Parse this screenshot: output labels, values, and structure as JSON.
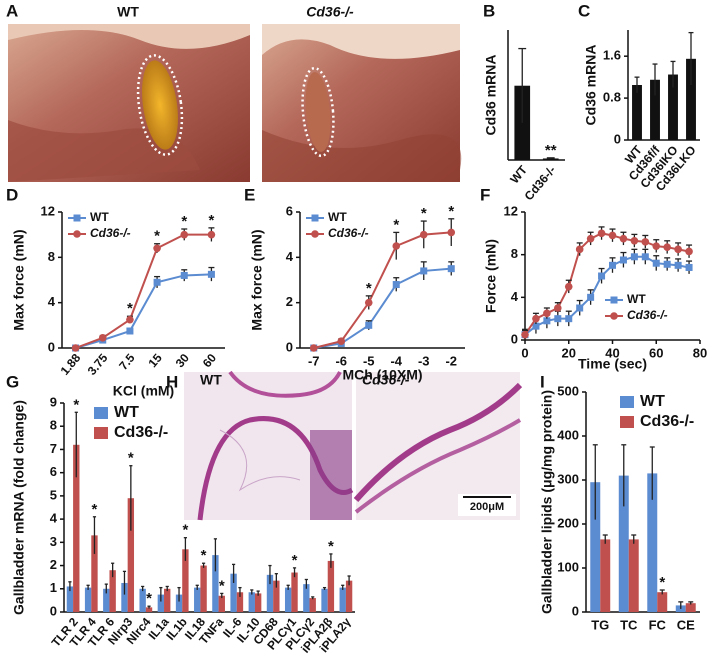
{
  "chart_data": [
    {
      "type": "image",
      "panel": "A",
      "labels": [
        "WT",
        "Cd36-/-"
      ]
    },
    {
      "type": "bar",
      "panel": "B",
      "y_label": "Cd36 mRNA",
      "categories": [
        "WT",
        "Cd36-/-"
      ],
      "ylim": [
        0,
        4.2
      ],
      "series": [
        {
          "color": "#111111",
          "values": [
            2.4,
            0.05
          ],
          "errors": [
            1.2,
            0.02
          ],
          "significance": [
            null,
            "**"
          ]
        }
      ]
    },
    {
      "type": "bar",
      "panel": "C",
      "y_label": "Cd36 mRNA",
      "categories": [
        "WT",
        "Cd36f/f",
        "Cd36IKO",
        "Cd36LKO"
      ],
      "ylim": [
        0,
        2.1
      ],
      "yticks": [
        0,
        0.8,
        1.6
      ],
      "series": [
        {
          "color": "#111111",
          "values": [
            1.05,
            1.15,
            1.25,
            1.55
          ],
          "errors": [
            0.15,
            0.3,
            0.25,
            0.5
          ]
        }
      ]
    },
    {
      "type": "line",
      "panel": "D",
      "y_label": "Max force (mN)",
      "x_label": "KCl (mM)",
      "categories": [
        "1.88",
        "3.75",
        "7.5",
        "15",
        "30",
        "60"
      ],
      "ylim": [
        0,
        12
      ],
      "yticks": [
        0,
        4,
        8,
        12
      ],
      "legend": "upper left",
      "series": [
        {
          "name": "WT",
          "color": "#5b8bd0",
          "marker": "square",
          "values": [
            0,
            0.7,
            1.5,
            5.8,
            6.4,
            6.5
          ],
          "errors": [
            0,
            0.1,
            0.2,
            0.5,
            0.5,
            0.6
          ]
        },
        {
          "name": "Cd36-/-",
          "color": "#c0504d",
          "marker": "circle",
          "values": [
            0,
            0.9,
            2.5,
            8.8,
            10,
            10
          ],
          "errors": [
            0,
            0.2,
            0.3,
            0.4,
            0.5,
            0.6
          ],
          "significance": [
            null,
            null,
            "*",
            "*",
            "*",
            "*"
          ]
        }
      ]
    },
    {
      "type": "line",
      "panel": "E",
      "y_label": "Max force (mN)",
      "x_label": "MCh (10XM)",
      "categories": [
        "-7",
        "-6",
        "-5",
        "-4",
        "-3",
        "-2"
      ],
      "ylim": [
        0,
        6
      ],
      "yticks": [
        0,
        2,
        4,
        6
      ],
      "legend": "upper left",
      "series": [
        {
          "name": "WT",
          "color": "#5b8bd0",
          "marker": "square",
          "values": [
            0,
            0.2,
            1.0,
            2.8,
            3.4,
            3.5
          ],
          "errors": [
            0,
            0.1,
            0.2,
            0.3,
            0.4,
            0.3
          ]
        },
        {
          "name": "Cd36-/-",
          "color": "#c0504d",
          "marker": "circle",
          "values": [
            0,
            0.3,
            2.0,
            4.5,
            5.0,
            5.1
          ],
          "errors": [
            0,
            0.1,
            0.3,
            0.6,
            0.6,
            0.6
          ],
          "significance": [
            null,
            null,
            "*",
            "*",
            "*",
            "*"
          ]
        }
      ]
    },
    {
      "type": "line",
      "panel": "F",
      "y_label": "Force (mN)",
      "x_label": "Time (sec)",
      "x": [
        0,
        5,
        10,
        15,
        20,
        25,
        30,
        35,
        40,
        45,
        50,
        55,
        60,
        65,
        70,
        75
      ],
      "xlim": [
        0,
        80
      ],
      "xticks": [
        0,
        20,
        40,
        60,
        80
      ],
      "ylim": [
        0,
        12
      ],
      "yticks": [
        0,
        4,
        8,
        12
      ],
      "legend": "lower right",
      "series": [
        {
          "name": "WT",
          "color": "#5b8bd0",
          "marker": "square",
          "values": [
            0.5,
            1.3,
            1.8,
            2,
            2,
            3,
            4,
            6,
            7,
            7.5,
            7.8,
            7.8,
            7.2,
            7.1,
            7,
            6.8
          ],
          "errors": [
            0.5,
            0.7,
            0.7,
            0.7,
            0.7,
            0.7,
            0.7,
            0.7,
            0.7,
            0.7,
            0.7,
            0.7,
            0.7,
            0.6,
            0.6,
            0.6
          ]
        },
        {
          "name": "Cd36-/-",
          "color": "#c0504d",
          "marker": "circle",
          "values": [
            0.5,
            2,
            2.5,
            3,
            5,
            8.5,
            9.5,
            10,
            9.8,
            9.5,
            9.3,
            9.2,
            8.8,
            8.7,
            8.5,
            8.3
          ],
          "errors": [
            0.4,
            0.5,
            0.5,
            0.5,
            0.6,
            0.6,
            0.6,
            0.6,
            0.6,
            0.6,
            0.6,
            0.6,
            0.6,
            0.6,
            0.6,
            0.6
          ]
        }
      ]
    },
    {
      "type": "bar",
      "panel": "G",
      "y_label": "Gallbladder mRNA (fold change)",
      "categories": [
        "TLR 2",
        "TLR 4",
        "TLR 6",
        "Nlrp3",
        "Nlrc4",
        "IL1a",
        "IL1b",
        "IL18",
        "TNFa",
        "IL-6",
        "IL-10",
        "CD68",
        "PLCγ1",
        "PLCγ2",
        "iPLA2β",
        "iPLA2γ"
      ],
      "ylim": [
        0,
        9
      ],
      "yticks": [
        0,
        1,
        2,
        3,
        4,
        5,
        6,
        7,
        8,
        9
      ],
      "legend": "upper left",
      "series": [
        {
          "name": "WT",
          "color": "#5b8bd0",
          "values": [
            1.1,
            1.05,
            1.0,
            1.25,
            1.0,
            0.75,
            0.75,
            1.05,
            2.45,
            1.65,
            0.85,
            1.6,
            1.05,
            1.2,
            1.0,
            1.05
          ],
          "errors": [
            0.2,
            0.1,
            0.2,
            0.5,
            0.1,
            0.3,
            0.3,
            0.1,
            0.7,
            0.4,
            0.1,
            0.4,
            0.1,
            0.2,
            0.05,
            0.1
          ]
        },
        {
          "name": "Cd36-/-",
          "color": "#c0504d",
          "values": [
            7.2,
            3.3,
            1.8,
            4.9,
            0.2,
            1.0,
            2.7,
            2.0,
            0.7,
            0.85,
            0.8,
            1.35,
            1.7,
            0.6,
            2.2,
            1.35
          ],
          "errors": [
            1.4,
            0.8,
            0.3,
            1.4,
            0.05,
            0.1,
            0.5,
            0.1,
            0.1,
            0.2,
            0.1,
            0.3,
            0.2,
            0.05,
            0.3,
            0.2
          ],
          "significance": [
            "*",
            "*",
            null,
            "*",
            "*",
            null,
            "*",
            "*",
            "*",
            null,
            null,
            null,
            "*",
            null,
            "*",
            null
          ]
        }
      ]
    },
    {
      "type": "image",
      "panel": "H",
      "labels": [
        "WT",
        "Cd36-/-"
      ],
      "scale_bar": "200μM"
    },
    {
      "type": "bar",
      "panel": "I",
      "y_label": "Gallbladder lipids (μg/mg protein)",
      "categories": [
        "TG",
        "TC",
        "FC",
        "CE"
      ],
      "ylim": [
        0,
        500
      ],
      "yticks": [
        0,
        100,
        200,
        300,
        400,
        500
      ],
      "legend": "upper right",
      "series": [
        {
          "name": "WT",
          "color": "#5b8bd0",
          "values": [
            295,
            310,
            315,
            15
          ],
          "errors": [
            85,
            70,
            60,
            8
          ]
        },
        {
          "name": "Cd36-/-",
          "color": "#c0504d",
          "values": [
            165,
            165,
            45,
            20
          ],
          "errors": [
            10,
            10,
            5,
            3
          ],
          "significance": [
            null,
            null,
            "*",
            null
          ]
        }
      ]
    }
  ]
}
